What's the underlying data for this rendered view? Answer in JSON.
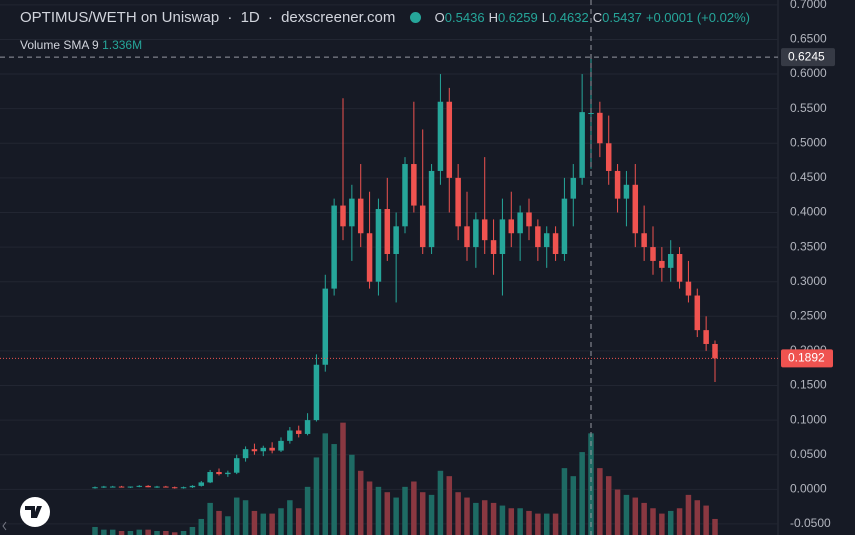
{
  "header": {
    "symbol": "OPTIMUS/WETH on Uniswap",
    "interval": "1D",
    "source": "dexscreener.com",
    "ohlc": [
      {
        "key": "O",
        "value": "0.5436"
      },
      {
        "key": "H",
        "value": "0.6259"
      },
      {
        "key": "L",
        "value": "0.4632"
      },
      {
        "key": "C",
        "value": "0.5437"
      }
    ],
    "change": "+0.0001 (+0.02%)",
    "volume_label": "Volume",
    "volume_sma": "SMA 9",
    "volume_value": "1.336M"
  },
  "chart_data": {
    "type": "candlestick",
    "open": [
      0.002,
      0.003,
      0.004,
      0.004,
      0.003,
      0.004,
      0.005,
      0.003,
      0.004,
      0.003,
      0.002,
      0.003,
      0.005,
      0.01,
      0.025,
      0.022,
      0.024,
      0.045,
      0.058,
      0.055,
      0.06,
      0.056,
      0.07,
      0.085,
      0.08,
      0.1,
      0.18,
      0.29,
      0.41,
      0.38,
      0.42,
      0.37,
      0.3,
      0.405,
      0.34,
      0.38,
      0.47,
      0.41,
      0.35,
      0.46,
      0.56,
      0.45,
      0.38,
      0.35,
      0.39,
      0.36,
      0.34,
      0.39,
      0.37,
      0.4,
      0.38,
      0.35,
      0.37,
      0.34,
      0.42,
      0.45,
      0.5436,
      0.544,
      0.5,
      0.46,
      0.42,
      0.44,
      0.37,
      0.35,
      0.33,
      0.32,
      0.34,
      0.3,
      0.28,
      0.23,
      0.21
    ],
    "high": [
      0.004,
      0.005,
      0.005,
      0.005,
      0.004,
      0.006,
      0.006,
      0.005,
      0.005,
      0.004,
      0.004,
      0.006,
      0.012,
      0.028,
      0.03,
      0.027,
      0.05,
      0.062,
      0.066,
      0.063,
      0.068,
      0.075,
      0.09,
      0.092,
      0.11,
      0.195,
      0.31,
      0.42,
      0.565,
      0.44,
      0.47,
      0.43,
      0.42,
      0.45,
      0.4,
      0.48,
      0.56,
      0.52,
      0.47,
      0.6,
      0.58,
      0.47,
      0.43,
      0.4,
      0.48,
      0.39,
      0.42,
      0.43,
      0.41,
      0.42,
      0.39,
      0.38,
      0.38,
      0.45,
      0.47,
      0.6,
      0.6259,
      0.56,
      0.54,
      0.47,
      0.46,
      0.47,
      0.41,
      0.38,
      0.35,
      0.36,
      0.35,
      0.33,
      0.29,
      0.25,
      0.215
    ],
    "low": [
      0.001,
      0.002,
      0.003,
      0.003,
      0.002,
      0.003,
      0.003,
      0.002,
      0.003,
      0.001,
      0.001,
      0.002,
      0.004,
      0.009,
      0.02,
      0.018,
      0.022,
      0.04,
      0.05,
      0.048,
      0.052,
      0.054,
      0.066,
      0.075,
      0.078,
      0.098,
      0.17,
      0.28,
      0.36,
      0.33,
      0.35,
      0.29,
      0.28,
      0.33,
      0.27,
      0.37,
      0.4,
      0.34,
      0.34,
      0.44,
      0.4,
      0.36,
      0.33,
      0.32,
      0.34,
      0.31,
      0.28,
      0.35,
      0.33,
      0.36,
      0.33,
      0.32,
      0.33,
      0.33,
      0.38,
      0.44,
      0.4632,
      0.48,
      0.44,
      0.4,
      0.38,
      0.35,
      0.33,
      0.31,
      0.3,
      0.3,
      0.29,
      0.27,
      0.22,
      0.2,
      0.155
    ],
    "close": [
      0.003,
      0.004,
      0.004,
      0.003,
      0.004,
      0.005,
      0.003,
      0.004,
      0.003,
      0.002,
      0.003,
      0.005,
      0.01,
      0.025,
      0.022,
      0.024,
      0.045,
      0.058,
      0.055,
      0.06,
      0.056,
      0.07,
      0.085,
      0.08,
      0.1,
      0.18,
      0.29,
      0.41,
      0.38,
      0.42,
      0.37,
      0.3,
      0.405,
      0.34,
      0.38,
      0.47,
      0.41,
      0.35,
      0.46,
      0.56,
      0.45,
      0.38,
      0.35,
      0.39,
      0.36,
      0.34,
      0.39,
      0.37,
      0.4,
      0.38,
      0.35,
      0.37,
      0.34,
      0.42,
      0.45,
      0.545,
      0.5437,
      0.5,
      0.46,
      0.42,
      0.44,
      0.37,
      0.35,
      0.33,
      0.32,
      0.34,
      0.3,
      0.28,
      0.23,
      0.21,
      0.1892
    ],
    "volume": [
      0.3,
      0.2,
      0.2,
      0.15,
      0.15,
      0.2,
      0.2,
      0.15,
      0.15,
      0.1,
      0.15,
      0.3,
      0.6,
      1.2,
      0.9,
      0.7,
      1.4,
      1.3,
      0.9,
      0.8,
      0.8,
      1.0,
      1.3,
      1.0,
      1.8,
      2.9,
      3.8,
      3.4,
      4.2,
      3.0,
      2.4,
      2.0,
      1.8,
      1.6,
      1.4,
      1.8,
      2.0,
      1.6,
      1.5,
      2.4,
      2.2,
      1.6,
      1.4,
      1.2,
      1.3,
      1.2,
      1.1,
      1.0,
      1.0,
      0.9,
      0.8,
      0.8,
      0.8,
      2.5,
      2.2,
      3.1,
      3.8,
      2.5,
      2.2,
      1.7,
      1.5,
      1.4,
      1.2,
      1.0,
      0.8,
      0.9,
      1.0,
      1.5,
      1.3,
      1.1,
      0.6
    ],
    "up_color": "#26a69a",
    "down_color": "#ef5350",
    "volume_up_color": "#1e6b64",
    "volume_down_color": "#8a3841",
    "ylim": [
      -0.066,
      0.707
    ],
    "volume_lim": [
      0,
      20
    ],
    "yticks": [
      {
        "value": 0.7,
        "label": "0.7000"
      },
      {
        "value": 0.65,
        "label": "0.6500"
      },
      {
        "value": 0.6,
        "label": "0.6000"
      },
      {
        "value": 0.55,
        "label": "0.5500"
      },
      {
        "value": 0.5,
        "label": "0.5000"
      },
      {
        "value": 0.45,
        "label": "0.4500"
      },
      {
        "value": 0.4,
        "label": "0.4000"
      },
      {
        "value": 0.35,
        "label": "0.3500"
      },
      {
        "value": 0.3,
        "label": "0.3000"
      },
      {
        "value": 0.25,
        "label": "0.2500"
      },
      {
        "value": 0.2,
        "label": "0.2000"
      },
      {
        "value": 0.15,
        "label": "0.1500"
      },
      {
        "value": 0.1,
        "label": "0.1000"
      },
      {
        "value": 0.05,
        "label": "0.0500"
      },
      {
        "value": 0,
        "label": "0.0000"
      },
      {
        "value": -0.05,
        "label": "-0.0500"
      }
    ],
    "grid": true,
    "crosshair": {
      "price": 0.6245,
      "candle": 56
    },
    "last_price": 0.1892
  }
}
